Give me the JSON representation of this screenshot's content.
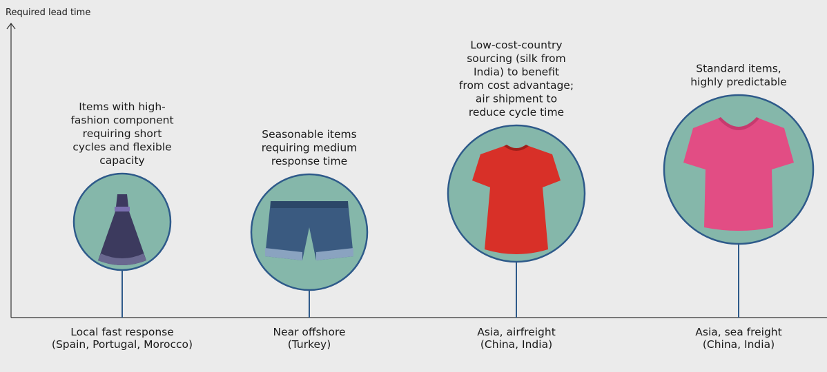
{
  "axis_label": "Required lead time",
  "items": [
    {
      "description": [
        "Items with high-",
        "fashion component",
        "requiring short",
        "cycles and flexible",
        "capacity"
      ],
      "label": [
        "Local fast response",
        "(Spain, Portugal, Morocco)"
      ]
    },
    {
      "description": [
        "Seasonable items",
        "requiring medium",
        "response time"
      ],
      "label": [
        "Near offshore",
        "(Turkey)"
      ]
    },
    {
      "description": [
        "Low-cost-country",
        "sourcing (silk from",
        "India) to benefit",
        "from cost advantage;",
        "air shipment to",
        "reduce cycle time"
      ],
      "label": [
        "Asia, airfreight",
        "(China, India)"
      ]
    },
    {
      "description": [
        "Standard items,",
        "highly predictable"
      ],
      "label": [
        "Asia, sea freight",
        "(China, India)"
      ]
    }
  ]
}
